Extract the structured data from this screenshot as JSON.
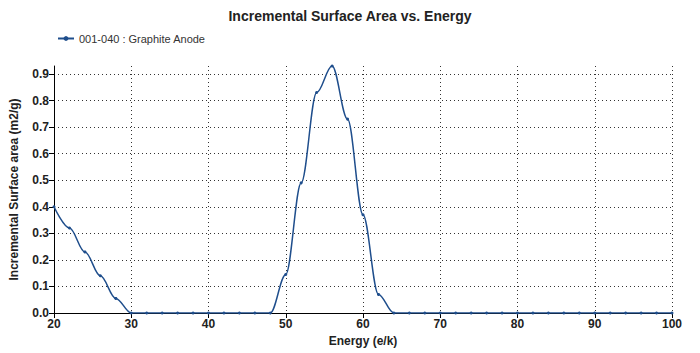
{
  "chart_data": {
    "type": "line",
    "title": "Incremental Surface Area vs. Energy",
    "x_label": "Energy (e/k)",
    "y_label": "Incremental Surface area (m2/g)",
    "x": [
      20,
      22,
      24,
      26,
      28,
      30,
      32,
      34,
      36,
      38,
      40,
      42,
      44,
      46,
      48,
      50,
      52,
      54,
      56,
      58,
      60,
      62,
      64,
      66,
      68,
      70,
      72,
      74,
      76,
      78,
      80,
      82,
      84,
      86,
      88,
      90,
      92,
      94,
      96,
      98,
      100
    ],
    "series": [
      {
        "name": "001-040 : Graphite Anode",
        "color": "#1f4e8c",
        "marker": "circle",
        "values": [
          0.4,
          0.32,
          0.23,
          0.14,
          0.055,
          0,
          0,
          0,
          0,
          0,
          0,
          0,
          0,
          0,
          0,
          0.145,
          0.49,
          0.83,
          0.93,
          0.73,
          0.37,
          0.07,
          0,
          0,
          0,
          0,
          0,
          0,
          0,
          0,
          0,
          0,
          0,
          0,
          0,
          0,
          0,
          0,
          0,
          0,
          0
        ]
      }
    ],
    "xlim": [
      20,
      100
    ],
    "xticks": [
      20,
      30,
      40,
      50,
      60,
      70,
      80,
      90,
      100
    ],
    "ylim": [
      0,
      0.93
    ],
    "yticks": [
      {
        "value": 0,
        "label": "0.0"
      },
      0.1,
      0.2,
      0.3,
      0.4,
      0.5,
      0.6,
      0.7,
      0.8,
      0.9
    ],
    "grid": true,
    "legend": "upper left"
  }
}
